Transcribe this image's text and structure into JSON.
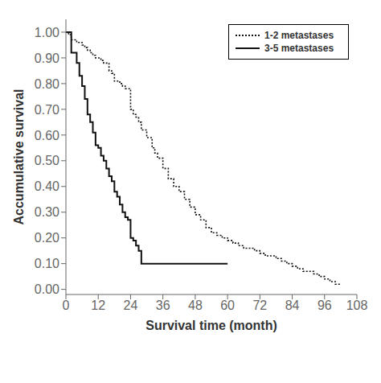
{
  "chart_data": {
    "type": "step",
    "xlabel": "Survival time   (month)",
    "ylabel": "Accumulative survival",
    "xlim": [
      0,
      108
    ],
    "ylim": [
      -0.02,
      1.05
    ],
    "xticks": [
      0,
      12,
      24,
      36,
      48,
      60,
      72,
      84,
      96,
      108
    ],
    "yticks": [
      {
        "value": 0.0,
        "label": "0.00"
      },
      {
        "value": 0.1,
        "label": "0.10"
      },
      {
        "value": 0.2,
        "label": "0.20"
      },
      {
        "value": 0.3,
        "label": "0.30"
      },
      {
        "value": 0.4,
        "label": "0.40"
      },
      {
        "value": 0.5,
        "label": "0.50"
      },
      {
        "value": 0.6,
        "label": "0.60"
      },
      {
        "value": 0.7,
        "label": "0.70"
      },
      {
        "value": 0.8,
        "label": "0.80"
      },
      {
        "value": 0.9,
        "label": "0.90"
      },
      {
        "value": 1.0,
        "label": "1.00"
      }
    ],
    "grid": false,
    "legend": "upper right",
    "series": [
      {
        "name": "1-2 metastases",
        "color": "#111111",
        "line_style": "dotted",
        "x": [
          0,
          1,
          2,
          3,
          4,
          5,
          6,
          7,
          8,
          9,
          10,
          11,
          12,
          13,
          14,
          16,
          17,
          18,
          19,
          20,
          21,
          22,
          24,
          25,
          26,
          27,
          28,
          30,
          32,
          33,
          34,
          36,
          38,
          40,
          42,
          44,
          46,
          48,
          50,
          52,
          54,
          56,
          58,
          60,
          62,
          64,
          66,
          68,
          70,
          72,
          74,
          76,
          78,
          80,
          82,
          84,
          86,
          88,
          90,
          92,
          94,
          96,
          98,
          100,
          102
        ],
        "values": [
          1.0,
          0.99,
          0.97,
          0.97,
          0.96,
          0.96,
          0.95,
          0.94,
          0.93,
          0.92,
          0.91,
          0.9,
          0.9,
          0.89,
          0.88,
          0.85,
          0.84,
          0.81,
          0.81,
          0.8,
          0.79,
          0.78,
          0.7,
          0.68,
          0.67,
          0.65,
          0.62,
          0.59,
          0.55,
          0.53,
          0.51,
          0.47,
          0.43,
          0.4,
          0.38,
          0.35,
          0.32,
          0.29,
          0.27,
          0.24,
          0.22,
          0.21,
          0.2,
          0.19,
          0.18,
          0.17,
          0.16,
          0.16,
          0.15,
          0.14,
          0.13,
          0.13,
          0.12,
          0.11,
          0.1,
          0.09,
          0.08,
          0.07,
          0.07,
          0.06,
          0.05,
          0.04,
          0.03,
          0.02,
          0.02
        ]
      },
      {
        "name": "3-5 metastases",
        "color": "#111111",
        "line_style": "solid",
        "x": [
          0,
          1,
          2,
          4,
          5,
          6,
          7,
          8,
          9,
          10,
          11,
          12,
          13,
          14,
          15,
          16,
          17,
          18,
          19,
          20,
          21,
          22,
          23,
          24,
          25,
          26,
          27,
          28,
          60
        ],
        "values": [
          1.0,
          1.0,
          0.92,
          0.88,
          0.83,
          0.79,
          0.74,
          0.68,
          0.65,
          0.61,
          0.56,
          0.55,
          0.52,
          0.5,
          0.47,
          0.44,
          0.42,
          0.38,
          0.36,
          0.33,
          0.3,
          0.28,
          0.27,
          0.2,
          0.19,
          0.17,
          0.15,
          0.1,
          0.1
        ]
      }
    ]
  }
}
